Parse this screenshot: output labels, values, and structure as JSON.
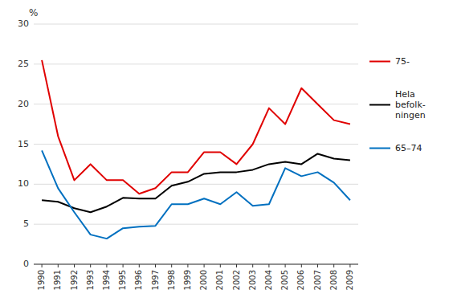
{
  "chart_data": {
    "type": "line",
    "y_label": "%",
    "x": [
      1990,
      1991,
      1992,
      1993,
      1994,
      1995,
      1996,
      1997,
      1998,
      1999,
      2000,
      2001,
      2002,
      2003,
      2004,
      2005,
      2006,
      2007,
      2008,
      2009
    ],
    "xlim": [
      1989.5,
      2009.5
    ],
    "xticks": [
      1990,
      1991,
      1992,
      1993,
      1994,
      1995,
      1996,
      1997,
      1998,
      1999,
      2000,
      2001,
      2002,
      2003,
      2004,
      2005,
      2006,
      2007,
      2008,
      2009
    ],
    "ylim": [
      0,
      30
    ],
    "yticks": [
      0,
      5,
      10,
      15,
      20,
      25,
      30
    ],
    "grid": "y",
    "legend": "right",
    "series": [
      {
        "name": "75-",
        "color": "#e00000",
        "values": [
          25.5,
          16.0,
          10.5,
          12.5,
          10.5,
          10.5,
          8.8,
          9.5,
          11.5,
          11.5,
          14.0,
          14.0,
          12.5,
          15.0,
          19.5,
          17.5,
          22.0,
          20.0,
          18.0,
          17.5
        ]
      },
      {
        "name": "Hela\nbefolk-\nningen",
        "color": "#000000",
        "values": [
          8.0,
          7.8,
          7.0,
          6.5,
          7.2,
          8.3,
          8.2,
          8.2,
          9.8,
          10.3,
          11.3,
          11.5,
          11.5,
          11.8,
          12.5,
          12.8,
          12.5,
          13.8,
          13.2,
          13.0
        ]
      },
      {
        "name": "65–74",
        "color": "#0070c0",
        "values": [
          14.2,
          9.5,
          6.5,
          3.7,
          3.2,
          4.5,
          4.7,
          4.8,
          7.5,
          7.5,
          8.2,
          7.5,
          9.0,
          7.3,
          7.5,
          12.0,
          11.0,
          11.5,
          10.2,
          8.0
        ]
      }
    ]
  }
}
